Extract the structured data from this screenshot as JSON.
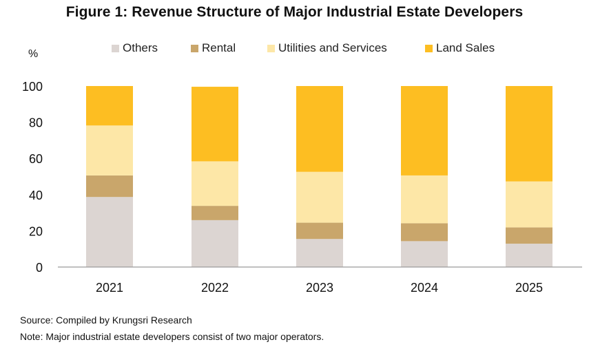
{
  "title": "Figure 1: Revenue Structure of Major Industrial Estate Developers",
  "footer": {
    "source": "Source: Compiled by Krungsri Research",
    "note": "Note: Major industrial estate developers consist of two major operators."
  },
  "chart_data": {
    "type": "bar",
    "stacked": true,
    "title": "Figure 1: Revenue Structure of Major Industrial Estate Developers",
    "ylabel": "%",
    "xlabel": "",
    "categories": [
      "2021",
      "2022",
      "2023",
      "2024",
      "2025"
    ],
    "ylim": [
      0,
      100
    ],
    "yticks": [
      0,
      20,
      40,
      60,
      80,
      100
    ],
    "grid": false,
    "legend_position": "top",
    "series": [
      {
        "name": "Others",
        "color": "#dcd5d2",
        "values": [
          38.7,
          25.9,
          15.5,
          14.3,
          12.9
        ]
      },
      {
        "name": "Rental",
        "color": "#c9a66b",
        "values": [
          11.9,
          7.9,
          9.0,
          9.9,
          9.0
        ]
      },
      {
        "name": "Utilities and Services",
        "color": "#fde7a7",
        "values": [
          27.6,
          24.6,
          28.1,
          26.4,
          25.4
        ]
      },
      {
        "name": "Land Sales",
        "color": "#fdbe22",
        "values": [
          21.8,
          41.2,
          47.4,
          49.4,
          52.7
        ]
      }
    ]
  }
}
